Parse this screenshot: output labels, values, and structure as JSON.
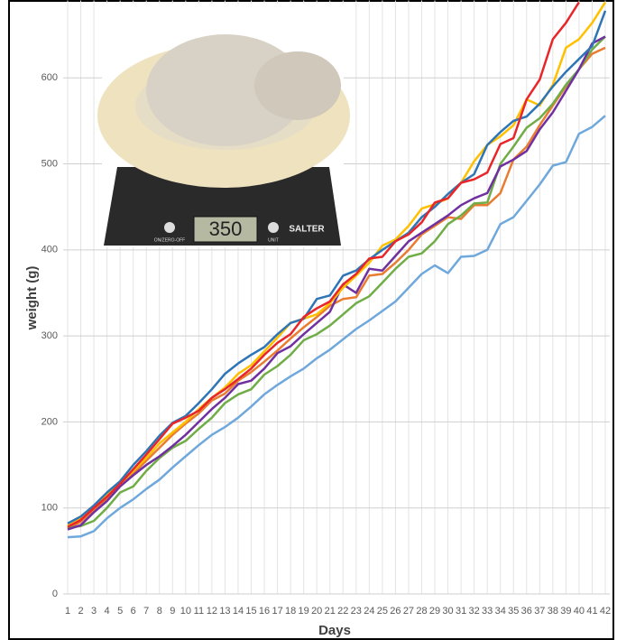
{
  "chart_data": {
    "type": "line",
    "x_label": "Days",
    "y_label": "weight (g)",
    "categories": [
      1,
      2,
      3,
      4,
      5,
      6,
      7,
      8,
      9,
      10,
      11,
      12,
      13,
      14,
      15,
      16,
      17,
      18,
      19,
      20,
      21,
      22,
      23,
      24,
      25,
      26,
      27,
      28,
      29,
      30,
      31,
      32,
      33,
      34,
      35,
      36,
      37,
      38,
      39,
      40,
      41,
      42
    ],
    "ylim": [
      0,
      690
    ],
    "yticks": [
      0,
      100,
      200,
      300,
      400,
      500,
      600
    ],
    "grid": true,
    "series": [
      {
        "color": "#6fa8dc",
        "values": [
          66,
          67,
          73,
          88,
          100,
          110,
          122,
          133,
          147,
          160,
          173,
          185,
          194,
          205,
          218,
          232,
          243,
          253,
          262,
          274,
          284,
          296,
          308,
          318,
          329,
          340,
          356,
          372,
          382,
          373,
          392,
          393,
          400,
          430,
          438,
          457,
          476,
          498,
          502,
          535,
          543,
          556
        ]
      },
      {
        "color": "#e97c30",
        "values": [
          76,
          84,
          98,
          110,
          125,
          140,
          155,
          170,
          185,
          198,
          210,
          225,
          233,
          248,
          258,
          270,
          283,
          297,
          310,
          322,
          335,
          343,
          345,
          370,
          372,
          385,
          400,
          418,
          428,
          438,
          436,
          452,
          452,
          466,
          505,
          520,
          545,
          568,
          590,
          610,
          628,
          635
        ]
      },
      {
        "color": "#70ad47",
        "values": [
          77,
          79,
          85,
          100,
          118,
          125,
          143,
          158,
          170,
          178,
          192,
          205,
          222,
          232,
          238,
          255,
          265,
          278,
          295,
          302,
          312,
          325,
          338,
          346,
          362,
          378,
          392,
          396,
          410,
          430,
          440,
          454,
          455,
          500,
          520,
          542,
          553,
          570,
          592,
          610,
          633,
          648
        ]
      },
      {
        "color": "#7030a0",
        "values": [
          75,
          80,
          95,
          108,
          125,
          138,
          150,
          160,
          172,
          185,
          200,
          215,
          228,
          244,
          248,
          262,
          280,
          288,
          302,
          315,
          328,
          360,
          350,
          378,
          376,
          393,
          410,
          420,
          430,
          440,
          452,
          460,
          466,
          497,
          505,
          515,
          540,
          560,
          585,
          610,
          640,
          648
        ]
      },
      {
        "color": "#ffc000",
        "values": [
          80,
          88,
          100,
          115,
          128,
          143,
          158,
          175,
          188,
          200,
          215,
          228,
          240,
          256,
          266,
          282,
          298,
          315,
          320,
          325,
          338,
          356,
          370,
          385,
          405,
          412,
          428,
          448,
          453,
          460,
          478,
          503,
          522,
          532,
          545,
          575,
          568,
          592,
          635,
          645,
          664,
          688
        ]
      },
      {
        "color": "#2e75b6",
        "values": [
          82,
          90,
          103,
          118,
          131,
          150,
          166,
          184,
          199,
          207,
          222,
          238,
          256,
          268,
          278,
          287,
          302,
          315,
          320,
          343,
          347,
          370,
          376,
          389,
          400,
          410,
          420,
          438,
          450,
          465,
          478,
          488,
          522,
          537,
          550,
          555,
          570,
          590,
          607,
          622,
          637,
          678
        ]
      },
      {
        "color": "#e8262a",
        "values": [
          78,
          86,
          100,
          113,
          128,
          145,
          162,
          180,
          198,
          205,
          213,
          228,
          238,
          250,
          262,
          278,
          292,
          302,
          322,
          332,
          340,
          360,
          372,
          390,
          392,
          410,
          418,
          432,
          455,
          460,
          478,
          482,
          490,
          523,
          530,
          575,
          598,
          645,
          664,
          688,
          null,
          null
        ]
      }
    ]
  },
  "photo": {
    "display": "350",
    "brand": "SALTER",
    "button_left": "ON/ZERO-OFF",
    "button_right": "UNIT"
  }
}
